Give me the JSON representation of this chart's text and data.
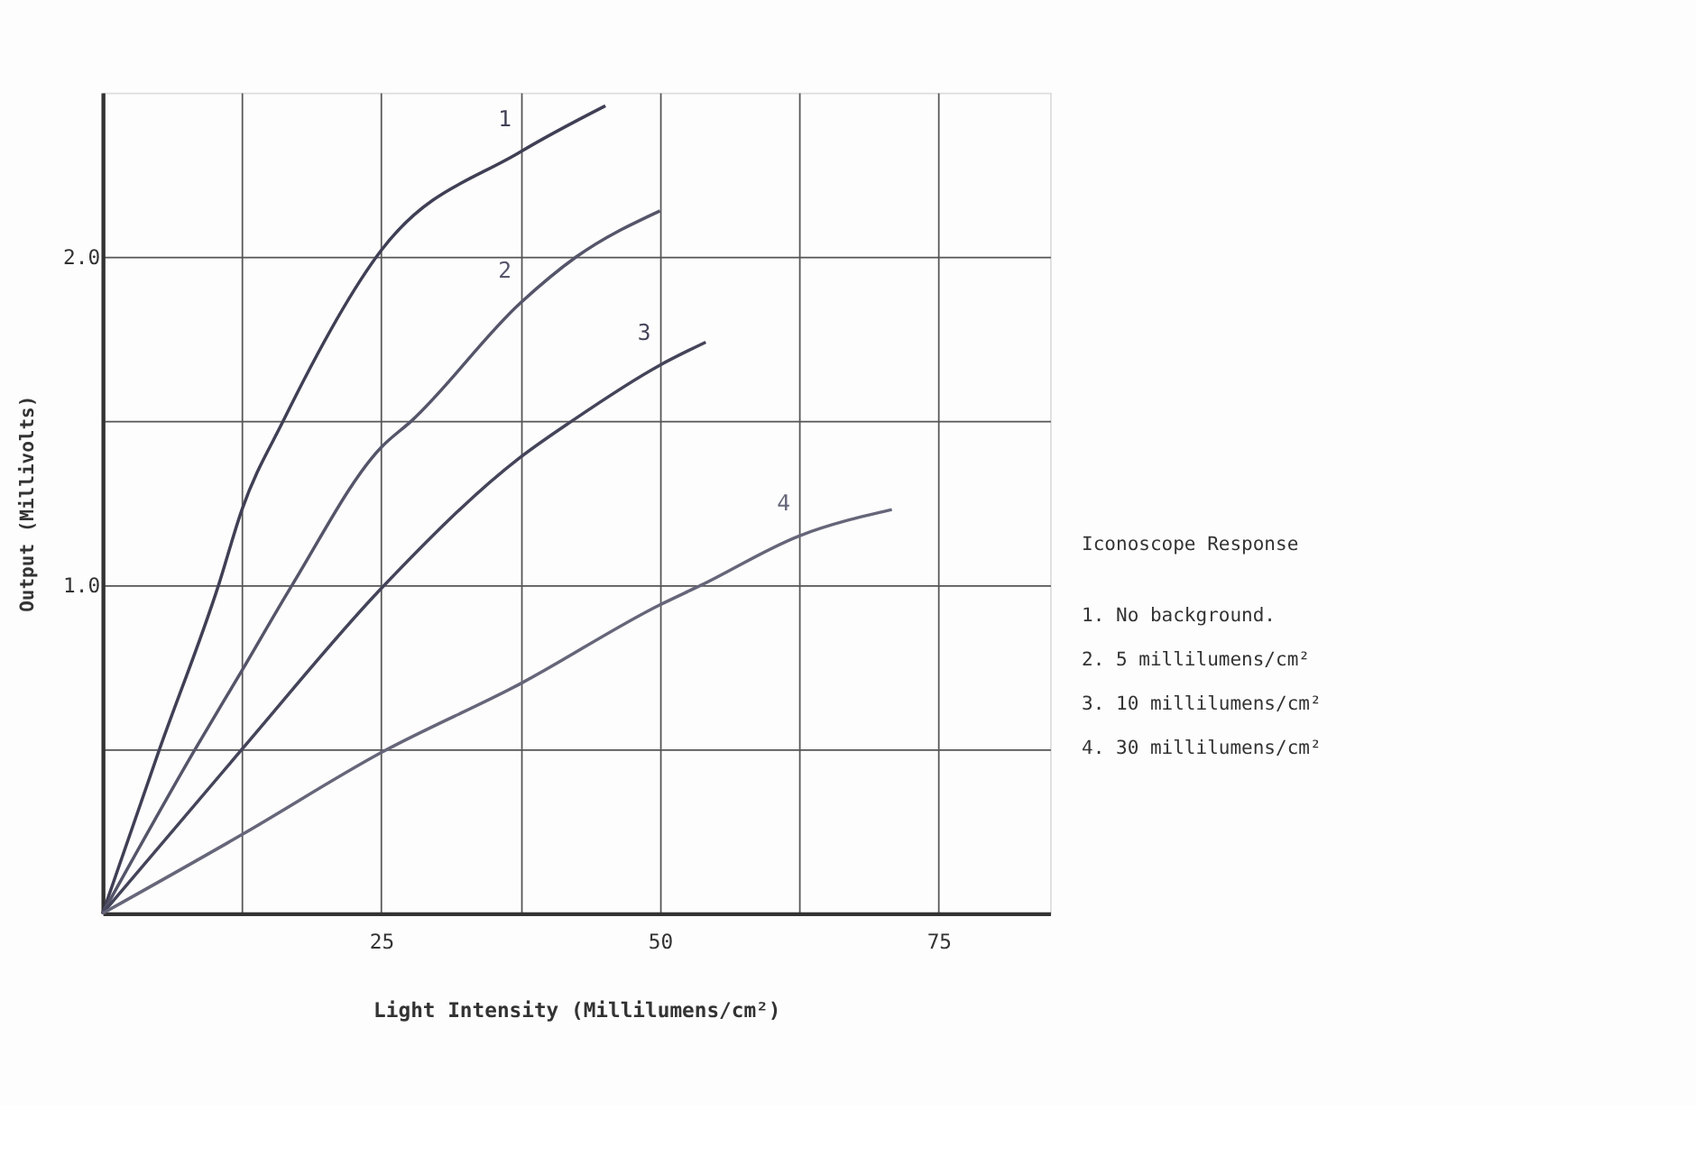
{
  "chart_data": {
    "type": "line",
    "xlabel": "Light Intensity  (Millilumens/cm²)",
    "ylabel": "Output (Millivolts)",
    "xlim": [
      0,
      85
    ],
    "ylim": [
      0,
      2.5
    ],
    "xticks": [
      {
        "value": 12.5,
        "label": null
      },
      25,
      {
        "value": 37.5,
        "label": null
      },
      50,
      {
        "value": 62.5,
        "label": null
      },
      75
    ],
    "yticks": [
      {
        "value": 0.5,
        "label": null
      },
      {
        "value": 1.0,
        "label": "1.0"
      },
      {
        "value": 1.5,
        "label": null
      },
      {
        "value": 2.0,
        "label": "2.0"
      }
    ],
    "grid": true,
    "marker": "none",
    "line_style": "solid",
    "series": [
      {
        "name": "1",
        "color": "#3f3f55",
        "x": [
          0,
          5.1,
          10.4,
          12.5,
          16.2,
          25,
          37.5,
          45.1
        ],
        "values": [
          0,
          0.5,
          1.0,
          1.23,
          1.5,
          2.02,
          2.32,
          2.46
        ]
      },
      {
        "name": "2",
        "color": "#55556a",
        "x": [
          0,
          8.3,
          12.5,
          17.0,
          25,
          27.7,
          37.5,
          42.5,
          50
        ],
        "values": [
          0,
          0.5,
          0.74,
          1.0,
          1.42,
          1.5,
          1.86,
          2.0,
          2.14
        ]
      },
      {
        "name": "3",
        "color": "#44445a",
        "x": [
          0,
          12.5,
          25,
          37.5,
          42.1,
          50,
          54.1
        ],
        "values": [
          0,
          0.5,
          0.99,
          1.39,
          1.5,
          1.67,
          1.74
        ]
      },
      {
        "name": "4",
        "color": "#66667a",
        "x": [
          0,
          12.5,
          25,
          37.5,
          50,
          53.7,
          62.5,
          70.8
        ],
        "values": [
          0,
          0.24,
          0.49,
          0.7,
          0.94,
          1.0,
          1.15,
          1.23
        ]
      }
    ],
    "annotations": [
      "Iconoscope Response",
      "1.  No background.",
      "2.  5 millilumens/cm²",
      "3.  10 millilumens/cm²",
      "4.  30 millilumens/cm²"
    ]
  }
}
